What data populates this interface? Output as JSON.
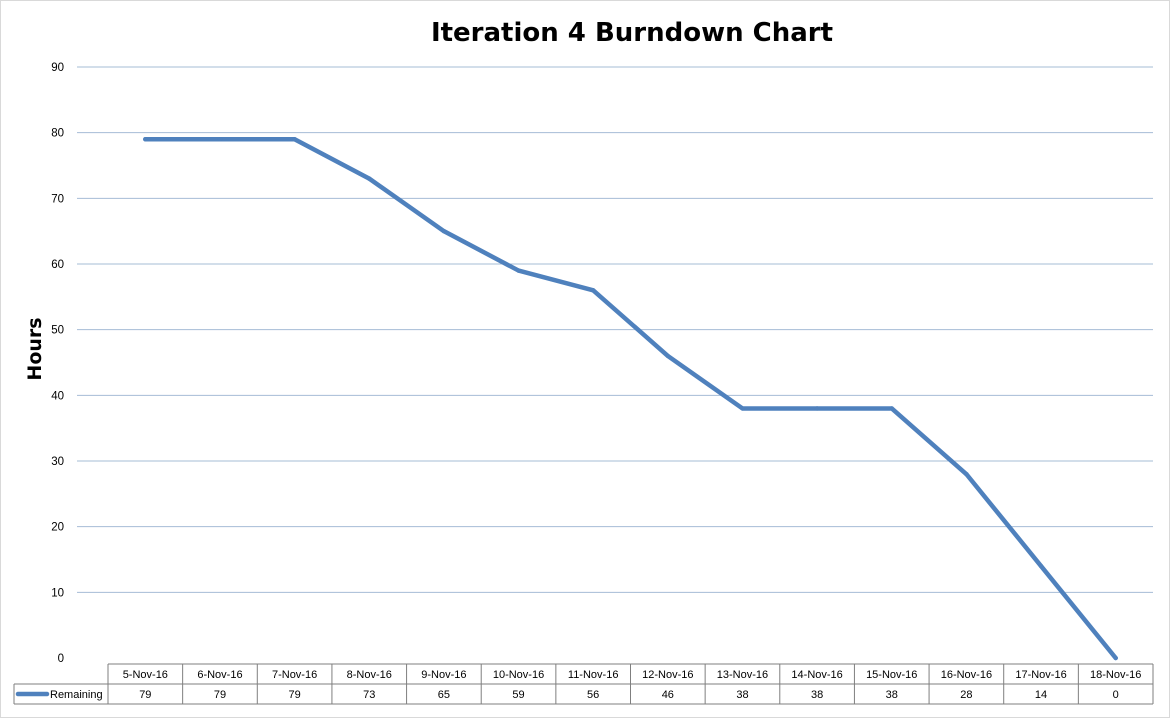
{
  "chart_data": {
    "type": "line",
    "title": "Iteration 4 Burndown Chart",
    "xlabel": "",
    "ylabel": "Hours",
    "ylim": [
      0,
      90
    ],
    "y_ticks": [
      0,
      10,
      20,
      30,
      40,
      50,
      60,
      70,
      80,
      90
    ],
    "grid": true,
    "legend_placement": "data-table",
    "categories": [
      "5-Nov-16",
      "6-Nov-16",
      "7-Nov-16",
      "8-Nov-16",
      "9-Nov-16",
      "10-Nov-16",
      "11-Nov-16",
      "12-Nov-16",
      "13-Nov-16",
      "14-Nov-16",
      "15-Nov-16",
      "16-Nov-16",
      "17-Nov-16",
      "18-Nov-16"
    ],
    "series": [
      {
        "name": "Remaining",
        "color": "#4f81bd",
        "values": [
          79,
          79,
          79,
          73,
          65,
          59,
          56,
          46,
          38,
          38,
          38,
          28,
          14,
          0
        ]
      }
    ],
    "colors": {
      "grid": "#a6bcd6",
      "table_border": "#7f7f7f",
      "axis_text": "#000000"
    }
  }
}
